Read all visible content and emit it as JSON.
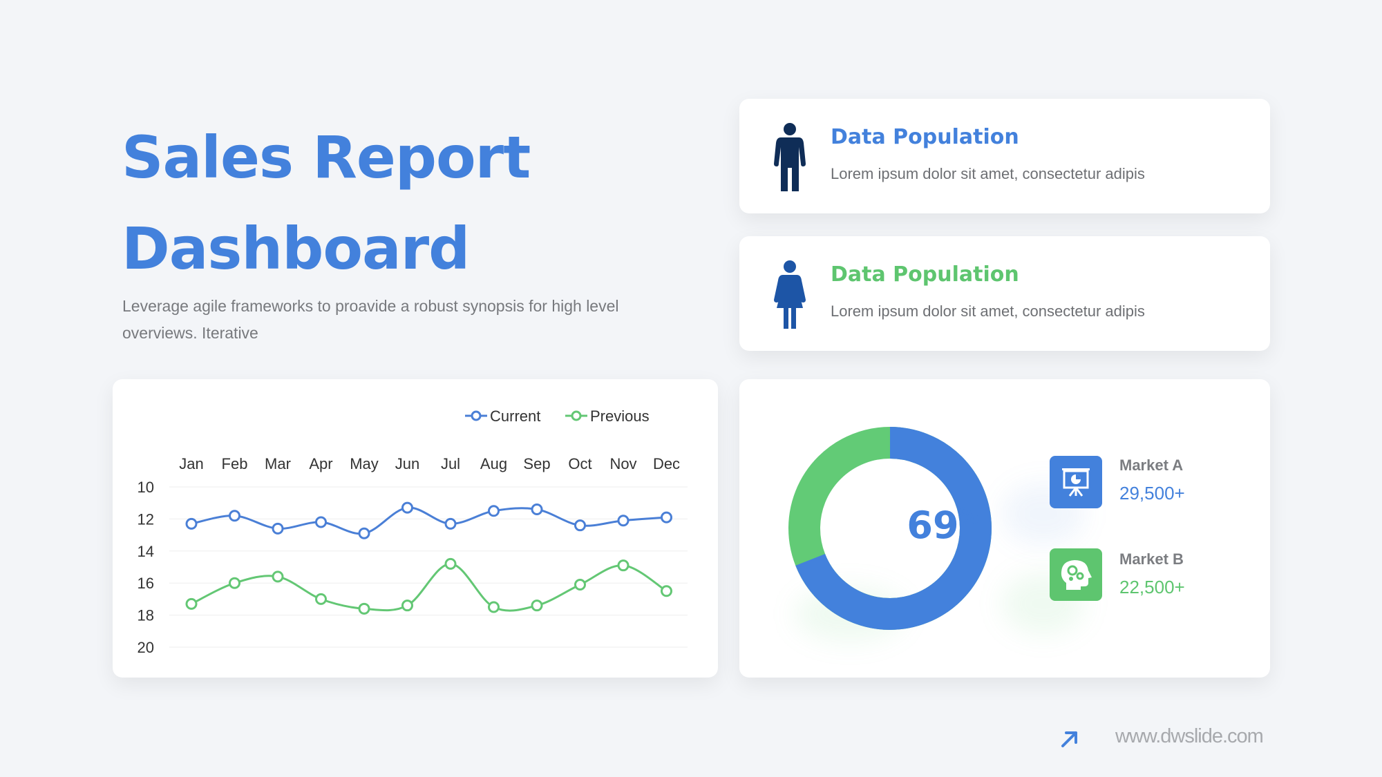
{
  "title_line1": "Sales Report",
  "title_line2": "Dashboard",
  "subtitle": "Leverage agile frameworks to proavide a robust synopsis for high level overviews. Iterative",
  "info_cards": [
    {
      "title": "Data Population",
      "text": "Lorem ipsum dolor sit amet, consectetur adipis",
      "icon": "male-person-icon",
      "color": "#0f2d57"
    },
    {
      "title": "Data Population",
      "text": "Lorem ipsum dolor sit amet, consectetur adipis",
      "icon": "female-person-icon",
      "color": "#1d55a6"
    }
  ],
  "chart_data": {
    "type": "line",
    "categories": [
      "Jan",
      "Feb",
      "Mar",
      "Apr",
      "May",
      "Jun",
      "Jul",
      "Aug",
      "Sep",
      "Oct",
      "Nov",
      "Dec"
    ],
    "y_ticks": [
      "10",
      "12",
      "14",
      "16",
      "18",
      "20"
    ],
    "ylim": [
      10,
      20
    ],
    "y_reversed": true,
    "x_axis_position": "top",
    "legend_position": "top-right",
    "grid": true,
    "series": [
      {
        "name": "Current",
        "color": "#4a7fd6",
        "values": [
          12.3,
          11.8,
          12.6,
          12.2,
          12.9,
          11.3,
          12.3,
          11.5,
          11.4,
          12.4,
          12.1,
          11.9
        ]
      },
      {
        "name": "Previous",
        "color": "#63c774",
        "values": [
          17.3,
          16.0,
          15.6,
          17.0,
          17.6,
          17.4,
          14.8,
          17.5,
          17.4,
          16.1,
          14.9,
          16.5
        ]
      }
    ]
  },
  "donut": {
    "percent": 69,
    "percent_symbol": "%",
    "primary_color": "#4381dc",
    "secondary_color": "#62cb76"
  },
  "markets": [
    {
      "label": "Market A",
      "value": "29,500+",
      "icon": "presentation-chart-icon",
      "color": "#4381dc"
    },
    {
      "label": "Market B",
      "value": "22,500+",
      "icon": "head-gears-icon",
      "color": "#5ec56f"
    }
  ],
  "footer": {
    "url": "www.dwslide.com",
    "icon": "arrow-up-right-icon",
    "color": "#4381dc"
  }
}
